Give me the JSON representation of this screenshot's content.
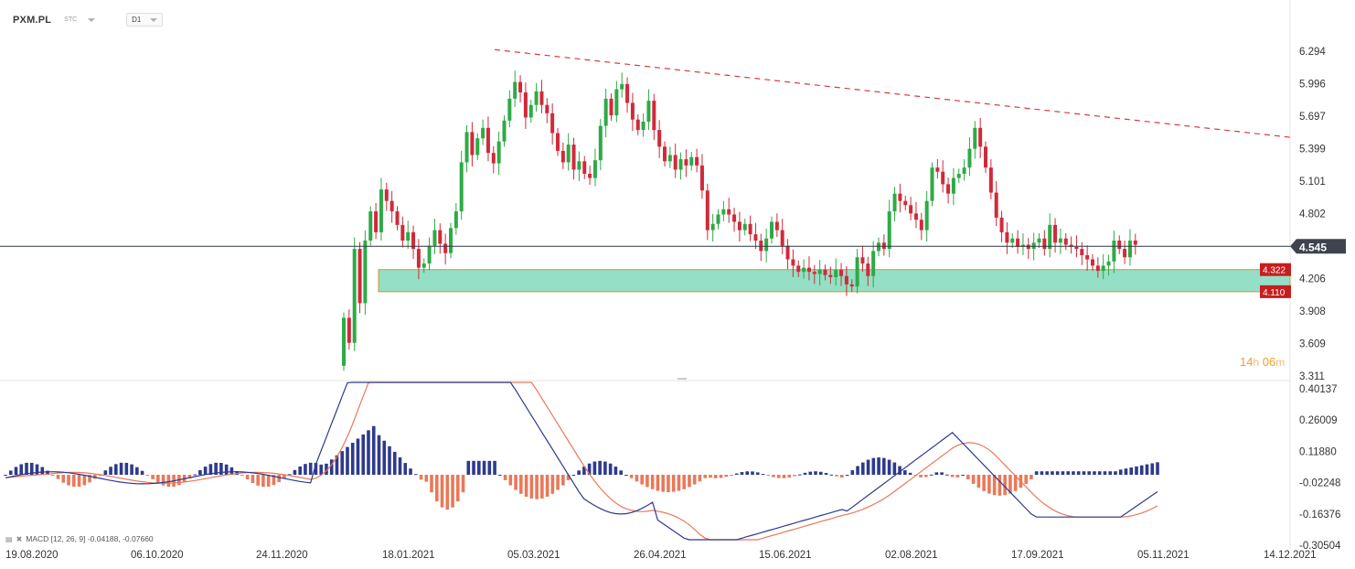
{
  "toolbar": {
    "symbol": "PXM.PL",
    "subtitle": "STC",
    "timeframe": "D1"
  },
  "countdown": {
    "hours": "14",
    "hours_unit": "h",
    "minutes": "06",
    "minutes_unit": "m"
  },
  "macd_legend": "MACD [12, 26, 9] -0.04188, -0.07660",
  "price_axis": [
    "6.294",
    "5.996",
    "5.697",
    "5.399",
    "5.101",
    "4.802",
    "4.206",
    "3.908",
    "3.609",
    "3.311"
  ],
  "macd_axis": [
    "0.40137",
    "0.26009",
    "0.11880",
    "-0.02248",
    "-0.16376",
    "-0.30504"
  ],
  "date_axis": [
    "19.08.2020",
    "06.10.2020",
    "24.11.2020",
    "18.01.2021",
    "05.03.2021",
    "26.04.2021",
    "15.06.2021",
    "02.08.2021",
    "17.09.2021",
    "05.11.2021",
    "14.12.2021"
  ],
  "current_price": "4.545",
  "zone_labels": {
    "upper": "4.322",
    "lower": "4.110"
  },
  "colors": {
    "up": "#2eaa46",
    "down": "#d02a3a",
    "zone_fill": "#94dfc6",
    "zone_border": "#d8952a",
    "trendline": "#d9393c",
    "hist_pos": "#2e3a8c",
    "hist_neg": "#e8795a",
    "macd_line": "#2e3a8c",
    "signal_line": "#e8795a",
    "price_tag": "#3d4450",
    "zone_tag": "#c61e1e"
  },
  "chart_data": {
    "type": "candlestick",
    "title": "PXM.PL",
    "timeframe": "D1",
    "ylim": [
      3.311,
      6.45
    ],
    "current_price": 4.545,
    "support_zone": [
      4.11,
      4.322
    ],
    "trendline": {
      "from_price": 6.43,
      "to_price": 5.59
    },
    "candles": [
      [
        3.4,
        3.86
      ],
      [
        3.86,
        3.62
      ],
      [
        3.62,
        4.52
      ],
      [
        4.52,
        4.0
      ],
      [
        4.0,
        4.6
      ],
      [
        4.6,
        4.88
      ],
      [
        4.88,
        4.68
      ],
      [
        4.68,
        5.09
      ],
      [
        5.09,
        4.98
      ],
      [
        4.98,
        4.88
      ],
      [
        4.88,
        4.75
      ],
      [
        4.75,
        4.6
      ],
      [
        4.6,
        4.68
      ],
      [
        4.68,
        4.52
      ],
      [
        4.52,
        4.34
      ],
      [
        4.34,
        4.38
      ],
      [
        4.38,
        4.55
      ],
      [
        4.55,
        4.7
      ],
      [
        4.7,
        4.57
      ],
      [
        4.57,
        4.48
      ],
      [
        4.48,
        4.72
      ],
      [
        4.72,
        4.88
      ],
      [
        4.88,
        5.35
      ],
      [
        5.35,
        5.64
      ],
      [
        5.64,
        5.42
      ],
      [
        5.42,
        5.58
      ],
      [
        5.58,
        5.68
      ],
      [
        5.68,
        5.44
      ],
      [
        5.44,
        5.34
      ],
      [
        5.34,
        5.55
      ],
      [
        5.55,
        5.75
      ],
      [
        5.75,
        5.96
      ],
      [
        5.96,
        6.12
      ],
      [
        6.12,
        6.02
      ],
      [
        6.02,
        5.78
      ],
      [
        5.78,
        5.9
      ],
      [
        5.9,
        6.03
      ],
      [
        6.03,
        5.9
      ],
      [
        5.9,
        5.82
      ],
      [
        5.82,
        5.63
      ],
      [
        5.63,
        5.46
      ],
      [
        5.46,
        5.35
      ],
      [
        5.35,
        5.52
      ],
      [
        5.52,
        5.28
      ],
      [
        5.28,
        5.36
      ],
      [
        5.36,
        5.24
      ],
      [
        5.24,
        5.2
      ],
      [
        5.2,
        5.37
      ],
      [
        5.37,
        5.7
      ],
      [
        5.7,
        5.96
      ],
      [
        5.96,
        5.8
      ],
      [
        5.8,
        6.05
      ],
      [
        6.05,
        6.1
      ],
      [
        6.1,
        5.92
      ],
      [
        5.92,
        5.76
      ],
      [
        5.76,
        5.66
      ],
      [
        5.66,
        5.74
      ],
      [
        5.74,
        5.94
      ],
      [
        5.94,
        5.66
      ],
      [
        5.66,
        5.5
      ],
      [
        5.5,
        5.36
      ],
      [
        5.36,
        5.42
      ],
      [
        5.42,
        5.28
      ],
      [
        5.28,
        5.38
      ],
      [
        5.38,
        5.32
      ],
      [
        5.32,
        5.4
      ],
      [
        5.4,
        5.32
      ],
      [
        5.32,
        5.08
      ],
      [
        5.08,
        4.7
      ],
      [
        4.7,
        4.76
      ],
      [
        4.76,
        4.85
      ],
      [
        4.85,
        4.9
      ],
      [
        4.9,
        4.85
      ],
      [
        4.85,
        4.78
      ],
      [
        4.78,
        4.7
      ],
      [
        4.7,
        4.76
      ],
      [
        4.76,
        4.66
      ],
      [
        4.66,
        4.6
      ],
      [
        4.6,
        4.5
      ],
      [
        4.5,
        4.62
      ],
      [
        4.62,
        4.78
      ],
      [
        4.78,
        4.7
      ],
      [
        4.7,
        4.55
      ],
      [
        4.55,
        4.42
      ],
      [
        4.42,
        4.36
      ],
      [
        4.36,
        4.3
      ],
      [
        4.3,
        4.34
      ],
      [
        4.34,
        4.3
      ],
      [
        4.3,
        4.28
      ],
      [
        4.28,
        4.32
      ],
      [
        4.32,
        4.27
      ],
      [
        4.27,
        4.25
      ],
      [
        4.25,
        4.32
      ],
      [
        4.32,
        4.26
      ],
      [
        4.26,
        4.18
      ],
      [
        4.18,
        4.16
      ],
      [
        4.16,
        4.44
      ],
      [
        4.44,
        4.38
      ],
      [
        4.38,
        4.26
      ],
      [
        4.26,
        4.5
      ],
      [
        4.5,
        4.58
      ],
      [
        4.58,
        4.52
      ],
      [
        4.52,
        4.88
      ],
      [
        4.88,
        5.05
      ],
      [
        5.05,
        4.98
      ],
      [
        4.98,
        4.94
      ],
      [
        4.94,
        4.86
      ],
      [
        4.86,
        4.8
      ],
      [
        4.8,
        4.7
      ],
      [
        4.7,
        4.98
      ],
      [
        4.98,
        5.3
      ],
      [
        5.3,
        5.26
      ],
      [
        5.26,
        5.14
      ],
      [
        5.14,
        5.05
      ],
      [
        5.05,
        5.2
      ],
      [
        5.2,
        5.24
      ],
      [
        5.24,
        5.3
      ],
      [
        5.3,
        5.48
      ],
      [
        5.48,
        5.68
      ],
      [
        5.68,
        5.5
      ],
      [
        5.5,
        5.3
      ],
      [
        5.3,
        5.06
      ],
      [
        5.06,
        4.82
      ],
      [
        4.82,
        4.68
      ],
      [
        4.68,
        4.58
      ],
      [
        4.58,
        4.62
      ],
      [
        4.62,
        4.54
      ],
      [
        4.54,
        4.56
      ],
      [
        4.56,
        4.52
      ],
      [
        4.52,
        4.58
      ],
      [
        4.58,
        4.62
      ],
      [
        4.62,
        4.52
      ],
      [
        4.52,
        4.75
      ],
      [
        4.75,
        4.58
      ],
      [
        4.58,
        4.62
      ],
      [
        4.62,
        4.56
      ],
      [
        4.56,
        4.54
      ],
      [
        4.54,
        4.52
      ],
      [
        4.52,
        4.46
      ],
      [
        4.46,
        4.42
      ],
      [
        4.42,
        4.36
      ],
      [
        4.36,
        4.31
      ],
      [
        4.31,
        4.36
      ],
      [
        4.36,
        4.4
      ],
      [
        4.4,
        4.6
      ],
      [
        4.6,
        4.52
      ],
      [
        4.52,
        4.44
      ],
      [
        4.44,
        4.6
      ],
      [
        4.6,
        4.56
      ]
    ]
  }
}
